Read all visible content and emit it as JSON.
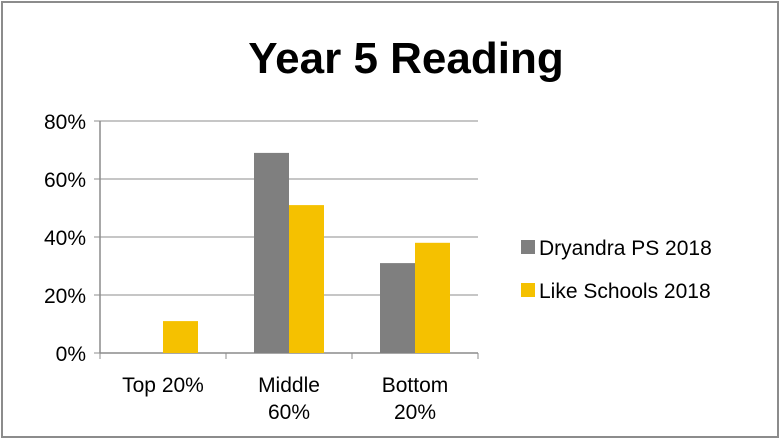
{
  "chart_data": {
    "type": "bar",
    "title": "Year 5 Reading",
    "categories": [
      [
        "Top 20%"
      ],
      [
        "Middle",
        "60%"
      ],
      [
        "Bottom",
        "20%"
      ]
    ],
    "series": [
      {
        "name": "Dryandra PS  2018",
        "values": [
          0,
          69,
          31
        ],
        "color": "#7f7f7f"
      },
      {
        "name": "Like Schools  2018",
        "values": [
          11,
          51,
          38
        ],
        "color": "#f5c100"
      }
    ],
    "yticks": [
      "0%",
      "20%",
      "40%",
      "60%",
      "80%"
    ],
    "ylim": [
      0,
      80
    ],
    "grid": true,
    "legend_position": "right"
  }
}
